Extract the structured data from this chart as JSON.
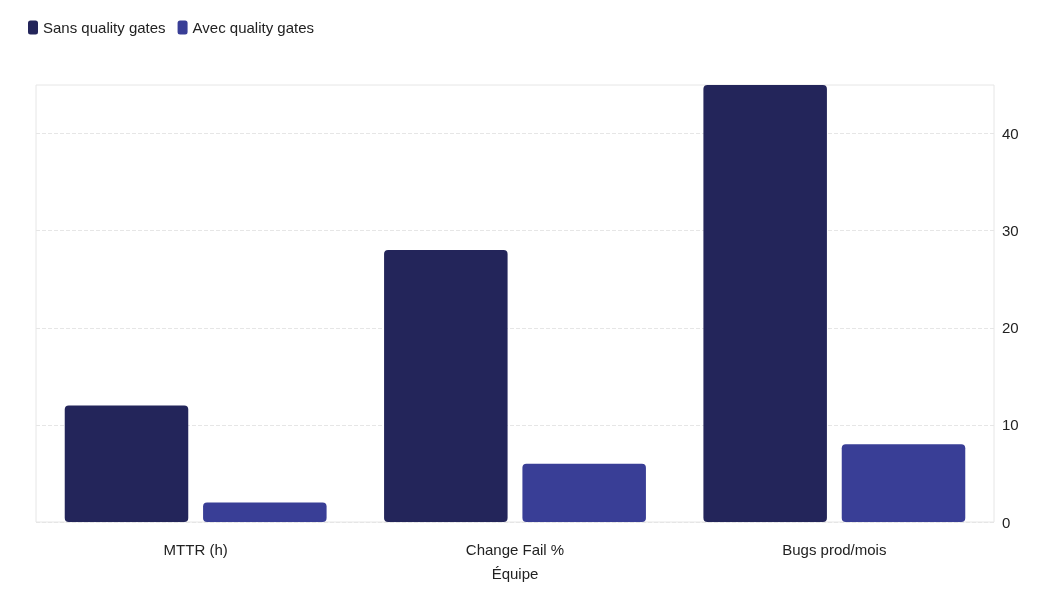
{
  "chart_data": {
    "type": "bar",
    "xlabel": "Équipe",
    "categories": [
      "MTTR (h)",
      "Change Fail %",
      "Bugs prod/mois"
    ],
    "series": [
      {
        "name": "Sans quality gates",
        "color": "#23255a",
        "values": [
          12,
          28,
          45
        ]
      },
      {
        "name": "Avec quality gates",
        "color": "#393e96",
        "values": [
          2,
          6,
          8
        ]
      }
    ],
    "ylim": [
      0,
      45
    ],
    "yticks": [
      0,
      10,
      20,
      30,
      40
    ],
    "grid": "y",
    "legend": "top left"
  }
}
